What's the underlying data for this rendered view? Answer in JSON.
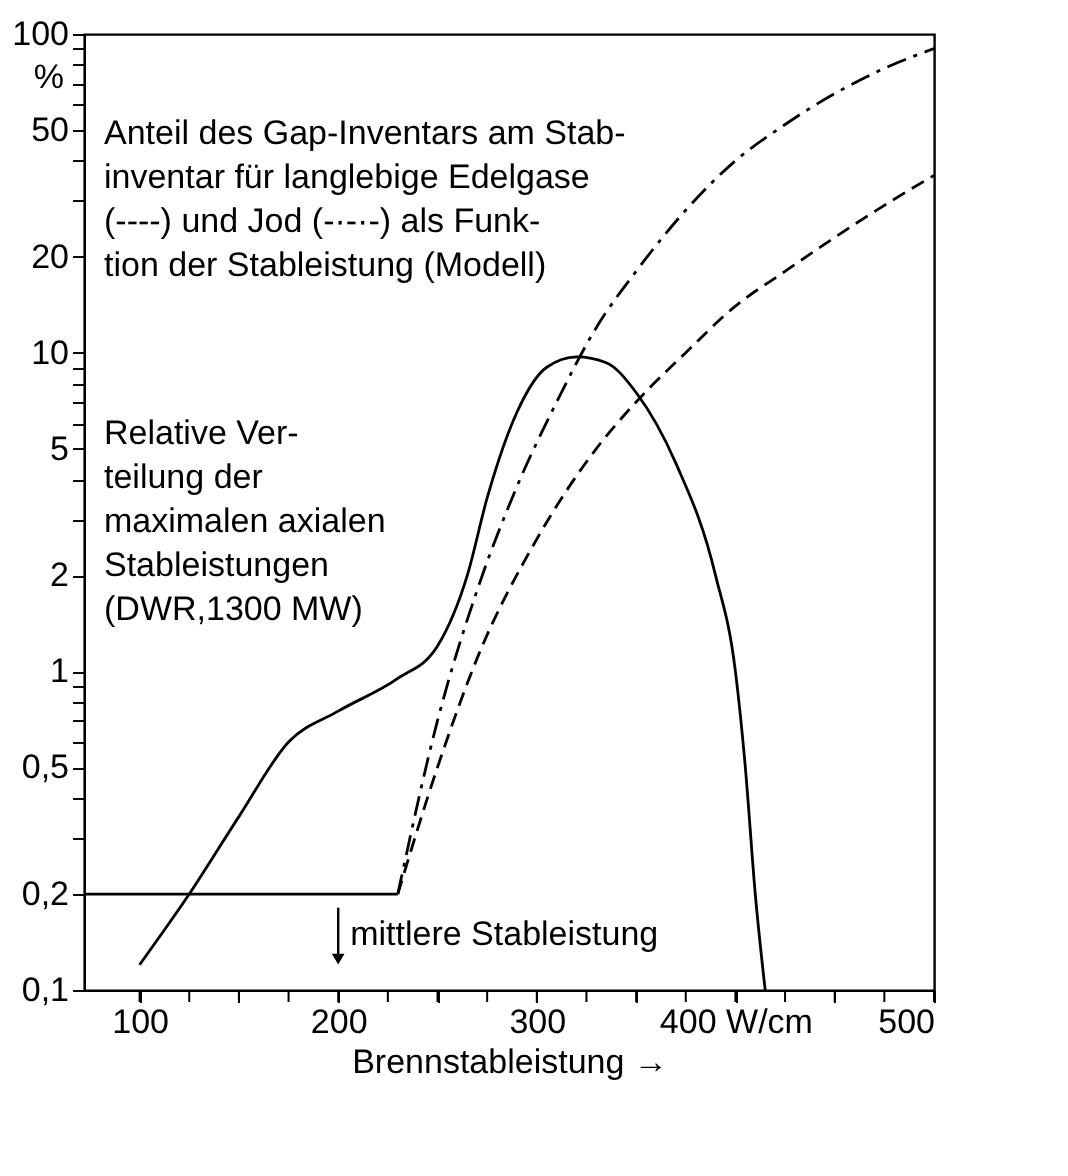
{
  "chart_data": {
    "type": "line",
    "xlabel": "Brennstableistung →",
    "ylabel": "%",
    "log": "y",
    "grid": false,
    "marker": "none",
    "xlim": [
      72,
      500
    ],
    "ylim": [
      0.1,
      100
    ],
    "xticks": [
      100,
      {
        "value": 125,
        "label": null
      },
      {
        "value": 150,
        "label": null
      },
      {
        "value": 175,
        "label": null
      },
      200,
      {
        "value": 225,
        "label": null
      },
      {
        "value": 250,
        "label": null
      },
      {
        "value": 275,
        "label": null
      },
      300,
      {
        "value": 325,
        "label": null
      },
      {
        "value": 350,
        "label": null
      },
      {
        "value": 375,
        "label": null
      },
      {
        "value": 400,
        "label": "400 W/cm"
      },
      {
        "value": 425,
        "label": null
      },
      {
        "value": 450,
        "label": null
      },
      {
        "value": 475,
        "label": null
      },
      500
    ],
    "yticks": [
      {
        "value": 0.1,
        "label": "0,1"
      },
      {
        "value": 0.2,
        "label": "0,2"
      },
      {
        "value": 0.3,
        "label": null
      },
      {
        "value": 0.4,
        "label": null
      },
      {
        "value": 0.5,
        "label": "0,5"
      },
      {
        "value": 0.6,
        "label": null
      },
      {
        "value": 0.7,
        "label": null
      },
      {
        "value": 0.8,
        "label": null
      },
      {
        "value": 0.9,
        "label": null
      },
      1,
      2,
      {
        "value": 3,
        "label": null
      },
      {
        "value": 4,
        "label": null
      },
      5,
      {
        "value": 6,
        "label": null
      },
      {
        "value": 7,
        "label": null
      },
      {
        "value": 8,
        "label": null
      },
      {
        "value": 9,
        "label": null
      },
      10,
      20,
      {
        "value": 30,
        "label": null
      },
      {
        "value": 40,
        "label": null
      },
      50,
      {
        "value": 60,
        "label": null
      },
      {
        "value": 70,
        "label": null
      },
      {
        "value": 80,
        "label": null
      },
      {
        "value": 90,
        "label": null
      },
      100
    ],
    "series": [
      {
        "color": "#000000",
        "line_style": "solid",
        "x": [
          100,
          125,
          150,
          175,
          200,
          230,
          250,
          265,
          275,
          290,
          305,
          320,
          335,
          350,
          370,
          390,
          400,
          405,
          410,
          415
        ],
        "values": [
          0.12,
          0.2,
          0.35,
          0.6,
          0.75,
          0.95,
          1.2,
          2.0,
          3.5,
          6.5,
          9.0,
          9.7,
          9.3,
          7.5,
          4.5,
          2.0,
          1.0,
          0.5,
          0.2,
          0.1
        ]
      },
      {
        "color": "#000000",
        "line_style": "solid",
        "x": [
          72,
          230
        ],
        "values": [
          0.2,
          0.2
        ]
      },
      {
        "color": "#000000",
        "line_style": "dashdot",
        "x": [
          230,
          250,
          270,
          290,
          310,
          330,
          350,
          375,
          400,
          425,
          450,
          475,
          500
        ],
        "values": [
          0.2,
          0.7,
          1.8,
          3.8,
          7,
          12,
          18,
          28,
          40,
          52,
          65,
          78,
          90
        ]
      },
      {
        "color": "#000000",
        "line_style": "dashed",
        "x": [
          230,
          250,
          270,
          300,
          330,
          350,
          375,
          400,
          425,
          450,
          475,
          500
        ],
        "values": [
          0.2,
          0.5,
          1.1,
          2.6,
          5,
          7,
          10,
          14,
          18,
          23,
          29,
          36
        ]
      }
    ],
    "annotations": [
      "Anteil des Gap-Inventars am Stab-\ninventar für langlebige Edelgase\n(----) und Jod (-·-·-) als Funk-\ntion der Stableistung (Modell)",
      "Relative Ver-\nteilung der\nmaximalen axialen\nStableistungen\n(DWR,1300 MW)",
      {
        "text": "mittlere Stableistung",
        "x": 200,
        "y": 0.125
      }
    ]
  }
}
